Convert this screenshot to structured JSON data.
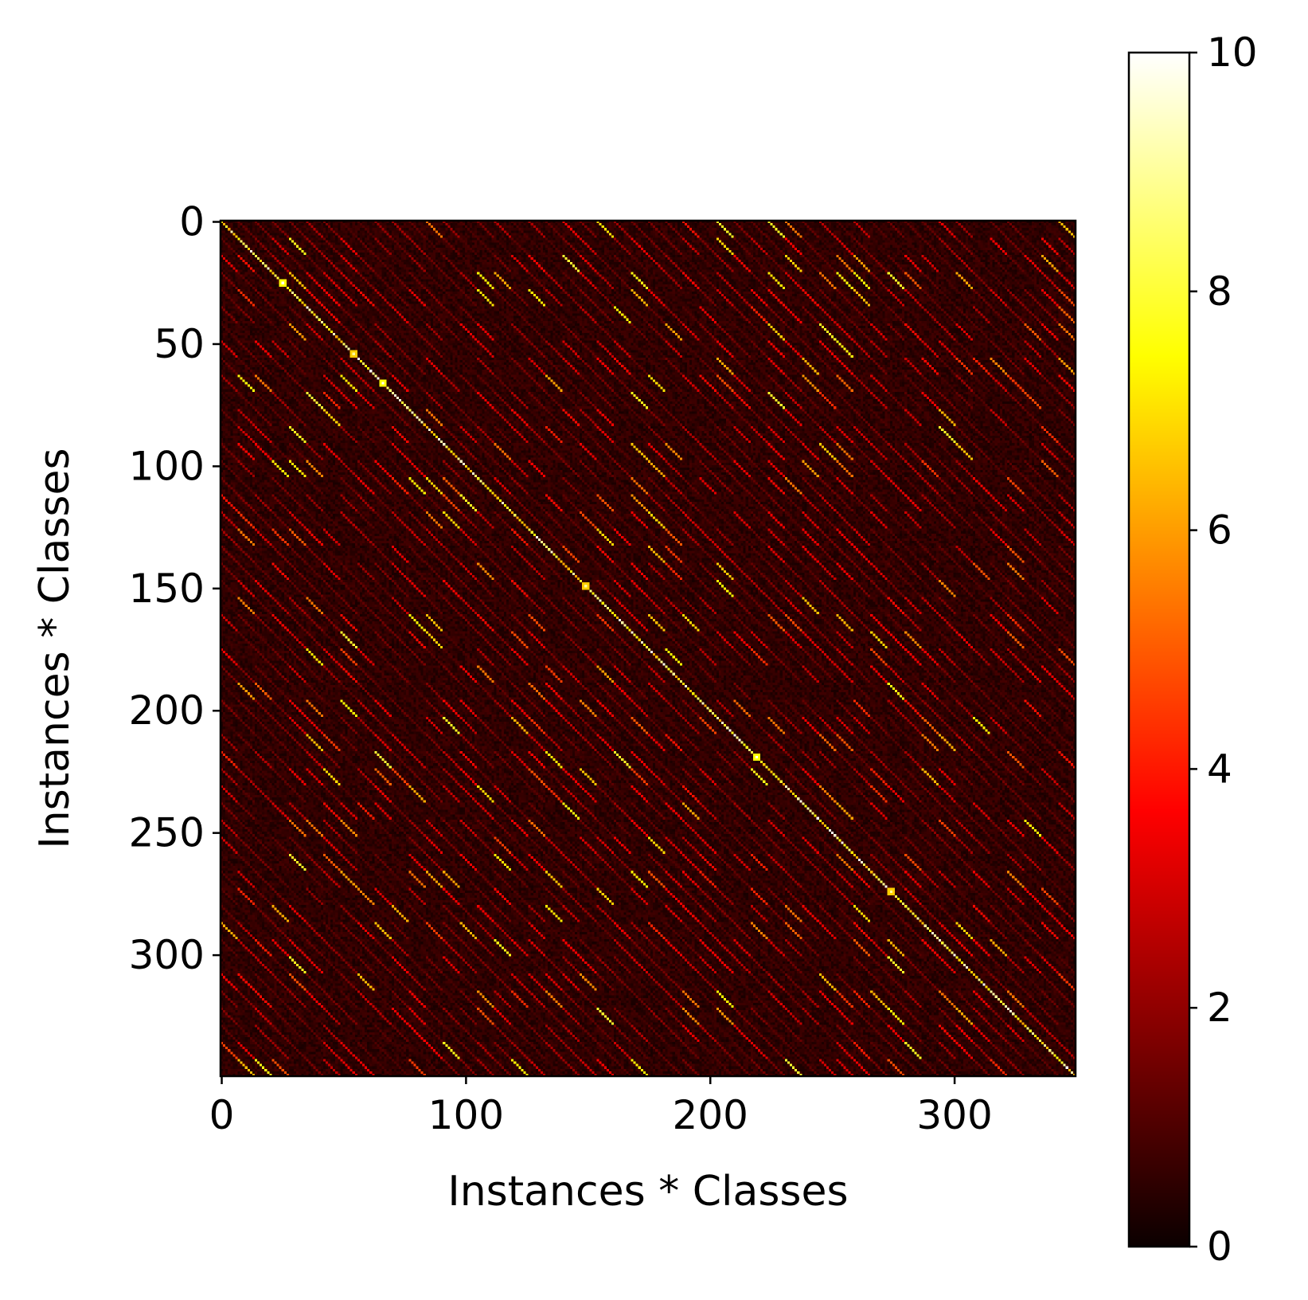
{
  "chart_data": {
    "type": "heatmap",
    "title": "",
    "xlabel": "Instances * Classes",
    "ylabel": "Instances * Classes",
    "size": 350,
    "xlim": [
      0,
      350
    ],
    "ylim": [
      350,
      0
    ],
    "x_ticks": [
      0,
      100,
      200,
      300
    ],
    "y_ticks": [
      0,
      50,
      100,
      150,
      200,
      250,
      300
    ],
    "colorbar": {
      "colormap": "hot",
      "range": [
        0,
        10
      ],
      "ticks": [
        0,
        2,
        4,
        6,
        8,
        10
      ]
    },
    "structure": {
      "stripe_period": 7,
      "diagonal_block_size": 7,
      "diagonal_value_range": [
        6,
        10
      ],
      "background_value_range": [
        0.2,
        1.5
      ],
      "offdiagonal_highlight_value_range": [
        3,
        8
      ]
    },
    "highlights": [
      {
        "row": 25,
        "col": 25,
        "value": 10
      },
      {
        "row": 54,
        "col": 54,
        "value": 9
      },
      {
        "row": 66,
        "col": 66,
        "value": 10
      },
      {
        "row": 149,
        "col": 149,
        "value": 9
      },
      {
        "row": 219,
        "col": 219,
        "value": 10
      },
      {
        "row": 274,
        "col": 274,
        "value": 9
      }
    ]
  }
}
